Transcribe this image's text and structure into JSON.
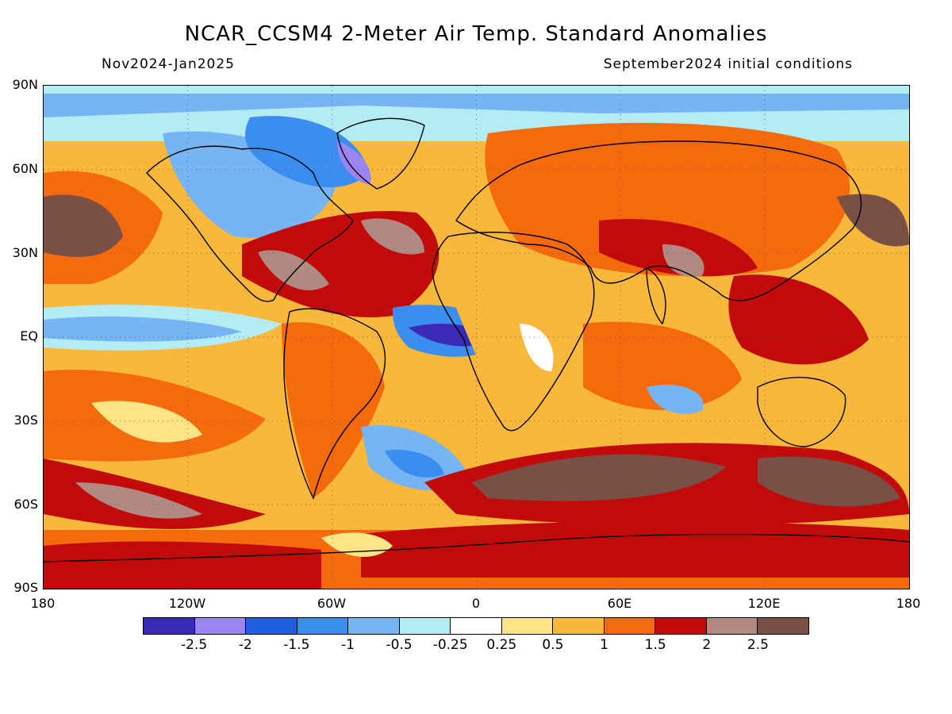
{
  "title": "NCAR_CCSM4 2-Meter Air Temp. Standard Anomalies",
  "period": "Nov2024-Jan2025",
  "init": "September2024 initial conditions",
  "lat_labels": [
    "90N",
    "60N",
    "30N",
    "EQ",
    "30S",
    "60S",
    "90S"
  ],
  "lon_labels": [
    "180",
    "120W",
    "60W",
    "0",
    "60E",
    "120E",
    "180"
  ],
  "colorbar": {
    "colors": [
      "#3b2ab8",
      "#9b85f2",
      "#2060e0",
      "#3b8ef0",
      "#76b4f4",
      "#b4ecf6",
      "#ffffff",
      "#fde585",
      "#f9b83a",
      "#f56a0c",
      "#c20a0a",
      "#b08a80",
      "#7a5046"
    ],
    "ticks": [
      "-2.5",
      "-2",
      "-1.5",
      "-1",
      "-0.5",
      "-0.25",
      "0.25",
      "0.5",
      "1",
      "1.5",
      "2",
      "2.5"
    ]
  }
}
